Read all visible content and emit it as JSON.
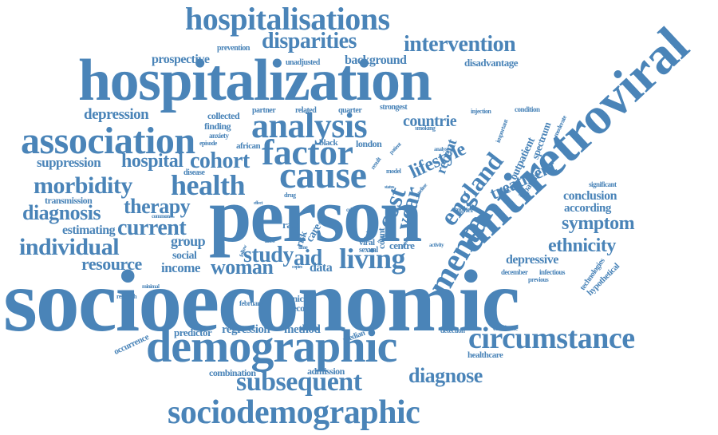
{
  "color": "#4a84b8",
  "words": {
    "socioeconomic": "socioeconomic",
    "person": "person",
    "hospitalization": "hospitalization",
    "antiretroviral": "antiretroviral",
    "demographic": "demographic",
    "hospitalisations": "hospitalisations",
    "sociodemographic": "sociodemographic",
    "association": "association",
    "cause": "cause",
    "analysis": "analysis",
    "factor": "factor",
    "living": "living",
    "mental": "mental",
    "circumstance": "circumstance",
    "subsequent": "subsequent",
    "disparities": "disparities",
    "intervention": "intervention",
    "health": "health",
    "morbidity": "morbidity",
    "individual": "individual",
    "diagnosis": "diagnosis",
    "current": "current",
    "cohort": "cohort",
    "hospital": "hospital",
    "england": "england",
    "symptom": "symptom",
    "ethnicity": "ethnicity",
    "depression": "depression",
    "therapy": "therapy",
    "study": "study",
    "aid": "aid",
    "woman": "woman",
    "resource": "resource",
    "year": "year",
    "cost": "cost",
    "lifestyle": "lifestyle",
    "countrie": "countrie",
    "treatment": "treatment",
    "diagnose": "diagnose",
    "background": "background",
    "prospective": "prospective",
    "suppression": "suppression",
    "group": "group",
    "income": "income",
    "social": "social",
    "estimating": "estimating",
    "transmission": "transmission",
    "conclusion": "conclusion",
    "according": "according",
    "depressive": "depressive",
    "regression": "regression",
    "method": "method",
    "predictor": "predictor",
    "combination": "combination",
    "admission": "admission",
    "healthcare": "healthcare",
    "disadvantage": "disadvantage",
    "unadjusted": "unadjusted",
    "prevention": "prevention",
    "collected": "collected",
    "finding": "finding",
    "partner": "partner",
    "related": "related",
    "quarter": "quarter",
    "strongest": "strongest",
    "london": "london",
    "black": "black",
    "african": "african",
    "anxiety": "anxiety",
    "episode": "episode",
    "disease": "disease",
    "outpatient": "outpatient",
    "inpatient": "inpatient",
    "spectrum": "spectrum",
    "recent": "recent",
    "higher": "higher",
    "count": "count",
    "care": "care",
    "risk": "risk",
    "rate": "rate",
    "centre": "centre",
    "viral": "viral",
    "sexual": "sexual",
    "data": "data",
    "clinical": "clinical",
    "record": "record",
    "february": "february",
    "research": "research",
    "occurrence": "occurrence",
    "median": "median",
    "detection": "detection",
    "eliminate": "eliminate",
    "december": "december",
    "infectious": "infectious",
    "previous": "previous",
    "technologies": "technologies",
    "hypothetical": "hypothetical",
    "significant": "significant",
    "common": "common",
    "minimal": "minimal",
    "injection": "injection",
    "condition": "condition",
    "moderate": "moderate",
    "important": "important",
    "smoking": "smoking",
    "result": "result",
    "patient": "patient",
    "analyse": "analyse",
    "baseline": "baseline",
    "model": "model",
    "drug": "drug",
    "status": "status",
    "effect": "effect",
    "time": "time",
    "cell": "cell",
    "attitude": "attitude",
    "activity": "activity",
    "budget": "budget",
    "follow": "follow",
    "illness": "illness",
    "copies": "copies",
    "review": "review",
    "stable": "stable"
  }
}
